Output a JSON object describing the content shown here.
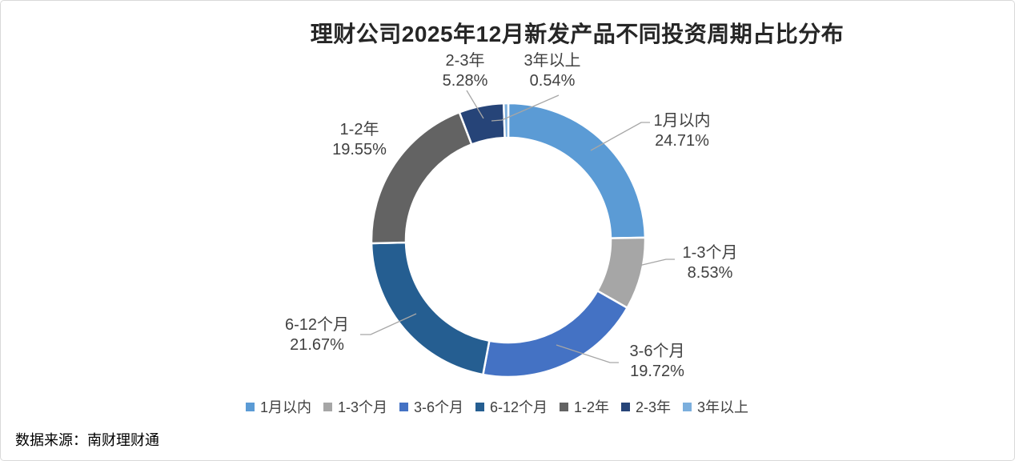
{
  "chart_data": {
    "type": "pie",
    "subtype": "donut",
    "title": "理财公司2025年12月新发产品不同投资周期占比分布",
    "start_angle_deg": 0,
    "direction": "clockwise",
    "categories": [
      "1月以内",
      "1-3个月",
      "3-6个月",
      "6-12个月",
      "1-2年",
      "2-3年",
      "3年以上"
    ],
    "values": [
      24.71,
      8.53,
      19.72,
      21.67,
      19.55,
      5.28,
      0.54
    ],
    "data_labels": [
      "24.71%",
      "8.53%",
      "19.72%",
      "21.67%",
      "19.55%",
      "5.28%",
      "0.54%"
    ],
    "colors": [
      "#5B9BD5",
      "#A6A6A6",
      "#4472C4",
      "#255E91",
      "#636363",
      "#264478",
      "#7CAFDD"
    ],
    "slice_border_color": "#FFFFFF",
    "leader_line_color": "#A6A6A6",
    "label_color": "#404040",
    "legend_position": "bottom",
    "legend_entries": [
      "1月以内",
      "1-3个月",
      "3-6个月",
      "6-12个月",
      "1-2年",
      "2-3年",
      "3年以上"
    ]
  },
  "source": "数据来源：南财理财通"
}
